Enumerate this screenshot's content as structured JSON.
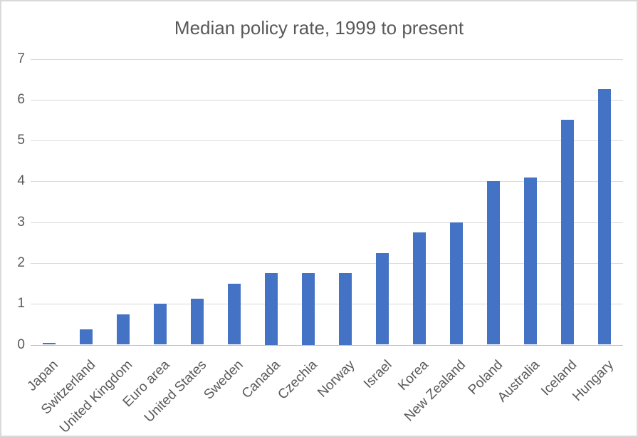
{
  "chart_data": {
    "type": "bar",
    "title": "Median policy rate, 1999 to present",
    "categories": [
      "Japan",
      "Switzerland",
      "United Kingdom",
      "Euro area",
      "United States",
      "Sweden",
      "Canada",
      "Czechia",
      "Norway",
      "Israel",
      "Korea",
      "New Zealand",
      "Poland",
      "Australia",
      "Iceland",
      "Hungary"
    ],
    "values": [
      0.05,
      0.375,
      0.75,
      1.0,
      1.125,
      1.5,
      1.75,
      1.75,
      1.75,
      2.25,
      2.75,
      3.0,
      4.0,
      4.1,
      5.5,
      6.25
    ],
    "xlabel": "",
    "ylabel": "",
    "ylim": [
      0,
      7
    ],
    "yticks": [
      0,
      1,
      2,
      3,
      4,
      5,
      6,
      7
    ],
    "grid": true,
    "legend": false
  },
  "colors": {
    "bar": "#4472C4",
    "gridline": "#D9D9D9",
    "axis_line": "#BFBFBF",
    "text": "#595959",
    "background": "#FFFFFF",
    "border": "#D9D9D9"
  }
}
